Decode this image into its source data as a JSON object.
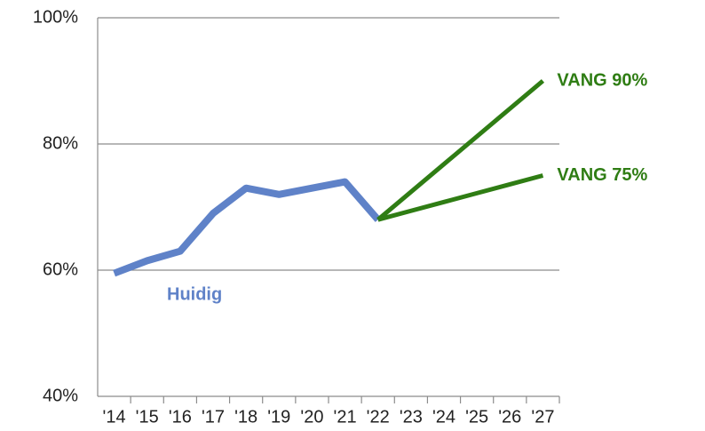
{
  "chart_data": {
    "type": "line",
    "categories": [
      "'14",
      "'15",
      "'16",
      "'17",
      "'18",
      "'19",
      "'20",
      "'21",
      "'22",
      "'23",
      "'24",
      "'25",
      "'26",
      "'27"
    ],
    "series": [
      {
        "name": "Huidig",
        "color": "#5f82c8",
        "values": [
          59.5,
          61.5,
          63,
          69,
          73,
          72,
          73,
          74,
          68,
          null,
          null,
          null,
          null,
          null
        ]
      },
      {
        "name": "VANG 90%",
        "color": "#2f7d14",
        "values": [
          null,
          null,
          null,
          null,
          null,
          null,
          null,
          null,
          68,
          72.4,
          76.8,
          81.2,
          85.6,
          90
        ]
      },
      {
        "name": "VANG 75%",
        "color": "#2f7d14",
        "values": [
          null,
          null,
          null,
          null,
          null,
          null,
          null,
          null,
          68,
          69.4,
          70.8,
          72.2,
          73.6,
          75
        ]
      }
    ],
    "ylim": [
      40,
      100
    ],
    "yticks": [
      {
        "value": 40,
        "label": "40%"
      },
      {
        "value": 60,
        "label": "60%"
      },
      {
        "value": 80,
        "label": "80%"
      },
      {
        "value": 100,
        "label": "100%"
      }
    ],
    "grid": true
  }
}
